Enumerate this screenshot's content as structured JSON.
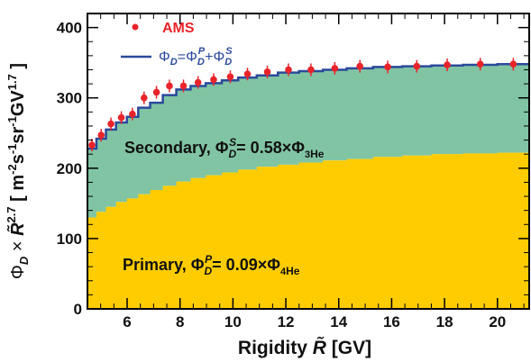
{
  "chart_data": {
    "type": "area",
    "xlabel": "Rigidity R̃ [GV]",
    "ylabel": "Φ_D × R̃^2.7 [ m⁻²s⁻¹sr⁻¹GV^1.7 ]",
    "xlim": [
      4.5,
      21.2
    ],
    "ylim": [
      0,
      420
    ],
    "x_ticks": [
      6,
      8,
      10,
      12,
      14,
      16,
      18,
      20
    ],
    "y_ticks": [
      0,
      100,
      200,
      300,
      400
    ],
    "bin_edges": [
      4.5,
      4.84,
      5.2,
      5.58,
      5.99,
      6.42,
      6.87,
      7.35,
      7.86,
      8.4,
      8.97,
      9.58,
      10.2,
      10.9,
      11.7,
      12.5,
      13.4,
      14.3,
      15.3,
      16.4,
      17.5,
      18.7,
      20.0,
      21.2
    ],
    "series": [
      {
        "name": "AMS",
        "style": "points-with-error-bars",
        "color": "#e8242a",
        "x": [
          4.67,
          5.02,
          5.39,
          5.78,
          6.2,
          6.64,
          7.11,
          7.6,
          8.13,
          8.68,
          9.27,
          9.9,
          10.55,
          11.3,
          12.1,
          12.95,
          13.85,
          14.8,
          15.85,
          16.95,
          18.1,
          19.35,
          20.6
        ],
        "y": [
          233,
          247,
          263,
          272,
          277,
          300,
          308,
          317,
          317,
          322,
          326,
          330,
          334,
          337,
          340,
          340,
          342,
          345,
          344,
          345,
          347,
          348,
          348
        ],
        "err": [
          9,
          9,
          9,
          9,
          9,
          9,
          9,
          9,
          9,
          9,
          9,
          9,
          9,
          9,
          9,
          9,
          9,
          9,
          9,
          9,
          9,
          9,
          9
        ]
      },
      {
        "name": "Φ_D=Φ_D^P+Φ_D^S",
        "style": "step",
        "color": "#2b4a9a",
        "values": [
          228,
          242,
          255,
          265,
          273,
          286,
          293,
          304,
          312,
          317,
          321,
          325,
          329,
          332,
          336,
          338,
          340,
          342,
          344,
          345,
          346,
          347,
          348
        ]
      },
      {
        "name": "Primary",
        "style": "filled-step",
        "color": "#fecc00",
        "values": [
          130,
          138,
          145,
          152,
          157,
          163,
          169,
          175,
          181,
          186,
          190,
          194,
          198,
          202,
          205,
          208,
          211,
          213,
          216,
          218,
          220,
          221,
          222
        ]
      },
      {
        "name": "Secondary",
        "style": "filled-step-stacked",
        "color": "#81c4a4",
        "values": [
          98,
          104,
          110,
          113,
          116,
          123,
          124,
          129,
          131,
          131,
          131,
          131,
          131,
          130,
          131,
          130,
          129,
          129,
          128,
          127,
          126,
          126,
          126
        ]
      }
    ],
    "legend": {
      "placement": "top-left",
      "ams_label": "AMS",
      "model_label": "Φ_D=Φ_D^P+Φ_D^S"
    },
    "annotations": {
      "secondary": "Secondary, Φ_D^S= 0.58×Φ₃He",
      "primary": "Primary, Φ_D^P= 0.09×Φ₄He"
    },
    "colors": {
      "primary_fill": "#fecc00",
      "secondary_fill": "#81c4a4",
      "model_line": "#2b4a9a",
      "ams_points": "#e8242a"
    }
  }
}
